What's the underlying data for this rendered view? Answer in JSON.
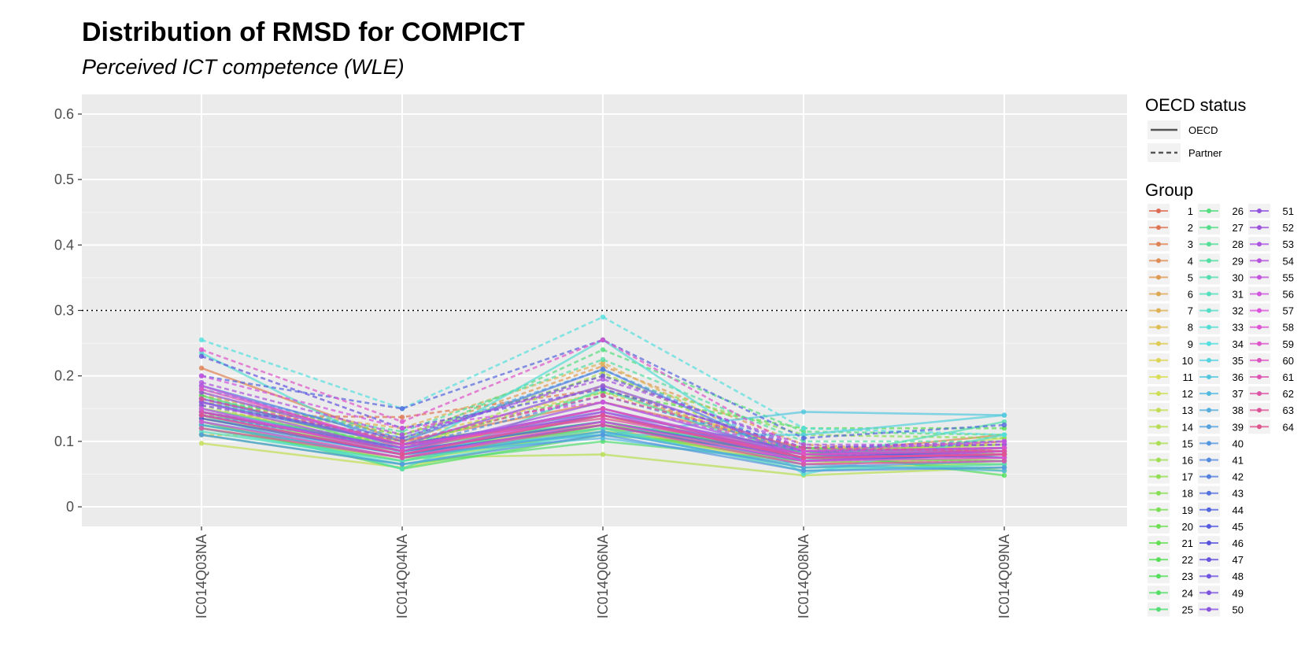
{
  "chart_data": {
    "type": "line",
    "title": "Distribution of RMSD for COMPICT",
    "subtitle": "Perceived ICT competence (WLE)",
    "xlabel": "",
    "ylabel": "",
    "categories": [
      "IC014Q03NA",
      "IC014Q04NA",
      "IC014Q06NA",
      "IC014Q08NA",
      "IC014Q09NA"
    ],
    "y_ticks": [
      "0",
      "0.1",
      "0.2",
      "0.3",
      "0.4",
      "0.5",
      "0.6"
    ],
    "ylim": [
      -0.03,
      0.63
    ],
    "reference_line": 0.3,
    "grid": true,
    "legend_position": "right",
    "legend_linetype": {
      "title": "OECD status",
      "items": [
        {
          "label": "OECD",
          "style": "solid"
        },
        {
          "label": "Partner",
          "style": "dashed"
        }
      ]
    },
    "legend_group": {
      "title": "Group",
      "items": [
        "1",
        "2",
        "3",
        "4",
        "5",
        "6",
        "7",
        "8",
        "9",
        "10",
        "11",
        "12",
        "13",
        "14",
        "15",
        "16",
        "17",
        "18",
        "19",
        "20",
        "21",
        "22",
        "23",
        "24",
        "25",
        "26",
        "27",
        "28",
        "29",
        "30",
        "31",
        "32",
        "33",
        "34",
        "35",
        "36",
        "37",
        "38",
        "39",
        "40",
        "41",
        "42",
        "43",
        "44",
        "45",
        "46",
        "47",
        "48",
        "49",
        "50",
        "51",
        "52",
        "53",
        "54",
        "55",
        "56",
        "57",
        "58",
        "59",
        "60",
        "61",
        "62",
        "63",
        "64"
      ]
    },
    "series": [
      {
        "name": "1",
        "status": "OECD",
        "values": [
          0.15,
          0.09,
          0.14,
          0.07,
          0.09
        ]
      },
      {
        "name": "2",
        "status": "Partner",
        "values": [
          0.14,
          0.137,
          0.18,
          0.08,
          0.1
        ]
      },
      {
        "name": "3",
        "status": "OECD",
        "values": [
          0.212,
          0.1,
          0.16,
          0.09,
          0.085
        ]
      },
      {
        "name": "4",
        "status": "OECD",
        "values": [
          0.145,
          0.085,
          0.13,
          0.08,
          0.11
        ]
      },
      {
        "name": "5",
        "status": "Partner",
        "values": [
          0.17,
          0.11,
          0.215,
          0.095,
          0.08
        ]
      },
      {
        "name": "6",
        "status": "OECD",
        "values": [
          0.13,
          0.075,
          0.12,
          0.065,
          0.075
        ]
      },
      {
        "name": "7",
        "status": "Partner",
        "values": [
          0.16,
          0.12,
          0.22,
          0.07,
          0.1
        ]
      },
      {
        "name": "8",
        "status": "OECD",
        "values": [
          0.14,
          0.095,
          0.125,
          0.075,
          0.085
        ]
      },
      {
        "name": "9",
        "status": "Partner",
        "values": [
          0.11,
          0.105,
          0.175,
          0.085,
          0.095
        ]
      },
      {
        "name": "10",
        "status": "OECD",
        "values": [
          0.15,
          0.1,
          0.135,
          0.09,
          0.09
        ]
      },
      {
        "name": "11",
        "status": "Partner",
        "values": [
          0.175,
          0.09,
          0.185,
          0.08,
          0.075
        ]
      },
      {
        "name": "12",
        "status": "OECD",
        "values": [
          0.135,
          0.08,
          0.13,
          0.075,
          0.105
        ]
      },
      {
        "name": "13",
        "status": "OECD",
        "values": [
          0.097,
          0.06,
          0.12,
          0.06,
          0.065
        ]
      },
      {
        "name": "14",
        "status": "OECD",
        "values": [
          0.12,
          0.075,
          0.08,
          0.048,
          0.06
        ]
      },
      {
        "name": "15",
        "status": "Partner",
        "values": [
          0.155,
          0.085,
          0.205,
          0.07,
          0.07
        ]
      },
      {
        "name": "16",
        "status": "OECD",
        "values": [
          0.13,
          0.07,
          0.115,
          0.085,
          0.095
        ]
      },
      {
        "name": "17",
        "status": "OECD",
        "values": [
          0.145,
          0.08,
          0.125,
          0.09,
          0.08
        ]
      },
      {
        "name": "18",
        "status": "Partner",
        "values": [
          0.165,
          0.11,
          0.2,
          0.11,
          0.105
        ]
      },
      {
        "name": "19",
        "status": "OECD",
        "values": [
          0.125,
          0.075,
          0.115,
          0.07,
          0.065
        ]
      },
      {
        "name": "20",
        "status": "OECD",
        "values": [
          0.135,
          0.085,
          0.13,
          0.08,
          0.055
        ]
      },
      {
        "name": "21",
        "status": "OECD",
        "values": [
          0.12,
          0.07,
          0.125,
          0.075,
          0.07
        ]
      },
      {
        "name": "22",
        "status": "Partner",
        "values": [
          0.145,
          0.095,
          0.175,
          0.12,
          0.12
        ]
      },
      {
        "name": "23",
        "status": "OECD",
        "values": [
          0.13,
          0.058,
          0.11,
          0.085,
          0.048
        ]
      },
      {
        "name": "24",
        "status": "OECD",
        "values": [
          0.17,
          0.085,
          0.12,
          0.09,
          0.075
        ]
      },
      {
        "name": "25",
        "status": "OECD",
        "values": [
          0.11,
          0.065,
          0.1,
          0.07,
          0.08
        ]
      },
      {
        "name": "26",
        "status": "Partner",
        "values": [
          0.16,
          0.1,
          0.24,
          0.115,
          0.11
        ]
      },
      {
        "name": "27",
        "status": "OECD",
        "values": [
          0.15,
          0.09,
          0.13,
          0.08,
          0.09
        ]
      },
      {
        "name": "28",
        "status": "OECD",
        "values": [
          0.125,
          0.075,
          0.14,
          0.075,
          0.085
        ]
      },
      {
        "name": "29",
        "status": "Partner",
        "values": [
          0.165,
          0.115,
          0.225,
          0.1,
          0.1
        ]
      },
      {
        "name": "30",
        "status": "OECD",
        "values": [
          0.14,
          0.058,
          0.18,
          0.07,
          0.13
        ]
      },
      {
        "name": "31",
        "status": "OECD",
        "values": [
          0.115,
          0.07,
          0.12,
          0.055,
          0.065
        ]
      },
      {
        "name": "32",
        "status": "OECD",
        "values": [
          0.12,
          0.065,
          0.115,
          0.06,
          0.06
        ]
      },
      {
        "name": "33",
        "status": "OECD",
        "values": [
          0.235,
          0.08,
          0.255,
          0.05,
          0.11
        ]
      },
      {
        "name": "34",
        "status": "Partner",
        "values": [
          0.255,
          0.15,
          0.29,
          0.12,
          0.11
        ]
      },
      {
        "name": "35",
        "status": "OECD",
        "values": [
          0.14,
          0.09,
          0.11,
          0.11,
          0.14
        ]
      },
      {
        "name": "36",
        "status": "OECD",
        "values": [
          0.15,
          0.085,
          0.11,
          0.145,
          0.14
        ]
      },
      {
        "name": "37",
        "status": "OECD",
        "values": [
          0.13,
          0.08,
          0.105,
          0.065,
          0.055
        ]
      },
      {
        "name": "38",
        "status": "Partner",
        "values": [
          0.18,
          0.105,
          0.21,
          0.08,
          0.08
        ]
      },
      {
        "name": "39",
        "status": "OECD",
        "values": [
          0.125,
          0.075,
          0.115,
          0.06,
          0.07
        ]
      },
      {
        "name": "40",
        "status": "OECD",
        "values": [
          0.11,
          0.065,
          0.11,
          0.055,
          0.06
        ]
      },
      {
        "name": "41",
        "status": "Partner",
        "values": [
          0.14,
          0.09,
          0.17,
          0.085,
          0.09
        ]
      },
      {
        "name": "42",
        "status": "OECD",
        "values": [
          0.185,
          0.1,
          0.21,
          0.07,
          0.08
        ]
      },
      {
        "name": "43",
        "status": "OECD",
        "values": [
          0.16,
          0.095,
          0.145,
          0.085,
          0.075
        ]
      },
      {
        "name": "44",
        "status": "Partner",
        "values": [
          0.2,
          0.15,
          0.255,
          0.105,
          0.125
        ]
      },
      {
        "name": "45",
        "status": "OECD",
        "values": [
          0.145,
          0.085,
          0.13,
          0.075,
          0.085
        ]
      },
      {
        "name": "46",
        "status": "OECD",
        "values": [
          0.135,
          0.08,
          0.125,
          0.07,
          0.08
        ]
      },
      {
        "name": "47",
        "status": "Partner",
        "values": [
          0.23,
          0.12,
          0.18,
          0.09,
          0.095
        ]
      },
      {
        "name": "48",
        "status": "OECD",
        "values": [
          0.165,
          0.095,
          0.14,
          0.08,
          0.085
        ]
      },
      {
        "name": "49",
        "status": "Partner",
        "values": [
          0.155,
          0.105,
          0.2,
          0.09,
          0.1
        ]
      },
      {
        "name": "50",
        "status": "OECD",
        "values": [
          0.145,
          0.09,
          0.15,
          0.075,
          0.08
        ]
      },
      {
        "name": "51",
        "status": "OECD",
        "values": [
          0.175,
          0.095,
          0.185,
          0.085,
          0.09
        ]
      },
      {
        "name": "52",
        "status": "OECD",
        "values": [
          0.16,
          0.085,
          0.16,
          0.08,
          0.075
        ]
      },
      {
        "name": "53",
        "status": "Partner",
        "values": [
          0.19,
          0.11,
          0.195,
          0.095,
          0.095
        ]
      },
      {
        "name": "54",
        "status": "OECD",
        "values": [
          0.14,
          0.08,
          0.145,
          0.07,
          0.085
        ]
      },
      {
        "name": "55",
        "status": "OECD",
        "values": [
          0.185,
          0.09,
          0.15,
          0.08,
          0.09
        ]
      },
      {
        "name": "56",
        "status": "Partner",
        "values": [
          0.2,
          0.12,
          0.16,
          0.085,
          0.1
        ]
      },
      {
        "name": "57",
        "status": "OECD",
        "values": [
          0.15,
          0.08,
          0.14,
          0.075,
          0.08
        ]
      },
      {
        "name": "58",
        "status": "OECD",
        "values": [
          0.13,
          0.075,
          0.13,
          0.07,
          0.075
        ]
      },
      {
        "name": "59",
        "status": "Partner",
        "values": [
          0.24,
          0.13,
          0.255,
          0.085,
          0.09
        ]
      },
      {
        "name": "60",
        "status": "OECD",
        "values": [
          0.18,
          0.095,
          0.135,
          0.08,
          0.085
        ]
      },
      {
        "name": "61",
        "status": "OECD",
        "values": [
          0.145,
          0.085,
          0.15,
          0.075,
          0.08
        ]
      },
      {
        "name": "62",
        "status": "OECD",
        "values": [
          0.12,
          0.075,
          0.125,
          0.065,
          0.07
        ]
      },
      {
        "name": "63",
        "status": "Partner",
        "values": [
          0.165,
          0.1,
          0.17,
          0.09,
          0.085
        ]
      },
      {
        "name": "64",
        "status": "OECD",
        "values": [
          0.14,
          0.08,
          0.14,
          0.075,
          0.08
        ]
      }
    ]
  }
}
